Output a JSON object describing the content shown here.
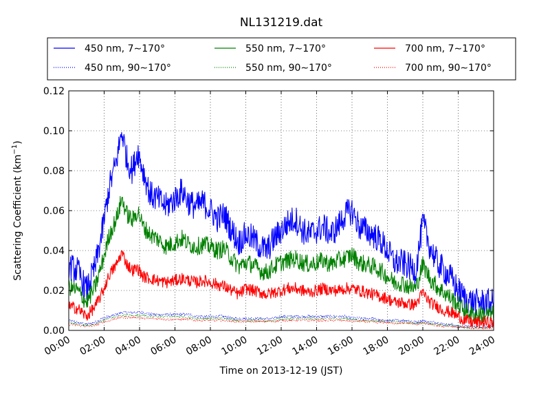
{
  "chart_data": {
    "type": "line",
    "title": "NL131219.dat",
    "xlabel": "Time on 2013-12-19 (JST)",
    "ylabel_main": "Scattering Coefficient (km",
    "ylabel_sup": "−1",
    "ylabel_end": ")",
    "xlim": [
      0,
      24
    ],
    "ylim": [
      0,
      0.12
    ],
    "x_ticks": [
      {
        "v": 0,
        "label": "00:00"
      },
      {
        "v": 2,
        "label": "02:00"
      },
      {
        "v": 4,
        "label": "04:00"
      },
      {
        "v": 6,
        "label": "06:00"
      },
      {
        "v": 8,
        "label": "08:00"
      },
      {
        "v": 10,
        "label": "10:00"
      },
      {
        "v": 12,
        "label": "12:00"
      },
      {
        "v": 14,
        "label": "14:00"
      },
      {
        "v": 16,
        "label": "16:00"
      },
      {
        "v": 18,
        "label": "18:00"
      },
      {
        "v": 20,
        "label": "20:00"
      },
      {
        "v": 22,
        "label": "22:00"
      },
      {
        "v": 24,
        "label": "24:00"
      }
    ],
    "y_ticks": [
      {
        "v": 0,
        "label": "0.00"
      },
      {
        "v": 0.02,
        "label": "0.02"
      },
      {
        "v": 0.04,
        "label": "0.04"
      },
      {
        "v": 0.06,
        "label": "0.06"
      },
      {
        "v": 0.08,
        "label": "0.08"
      },
      {
        "v": 0.1,
        "label": "0.10"
      },
      {
        "v": 0.12,
        "label": "0.12"
      }
    ],
    "grid": true,
    "legend_position": "top-outside",
    "x": [
      0,
      0.5,
      1.0,
      1.5,
      1.9,
      2.3,
      2.7,
      3.0,
      3.3,
      3.6,
      3.9,
      4.2,
      4.6,
      5.0,
      5.5,
      6.0,
      6.4,
      6.8,
      7.2,
      7.6,
      8.0,
      8.4,
      8.8,
      9.2,
      9.6,
      10.0,
      10.4,
      10.8,
      11.2,
      11.6,
      12.0,
      12.4,
      12.8,
      13.2,
      13.6,
      14.0,
      14.4,
      14.8,
      15.2,
      15.6,
      16.0,
      16.4,
      16.8,
      17.2,
      17.6,
      18.0,
      18.4,
      18.8,
      19.2,
      19.6,
      20.0,
      20.4,
      20.8,
      21.2,
      21.6,
      22.0,
      22.4,
      22.8,
      23.2,
      23.6,
      24.0
    ],
    "series": [
      {
        "name": "450 nm, 7∼170°",
        "color": "#0000ff",
        "style": "solid",
        "noise": 0.007,
        "values": [
          0.032,
          0.03,
          0.02,
          0.032,
          0.05,
          0.072,
          0.085,
          0.1,
          0.085,
          0.08,
          0.09,
          0.08,
          0.068,
          0.066,
          0.062,
          0.066,
          0.07,
          0.064,
          0.062,
          0.064,
          0.06,
          0.056,
          0.058,
          0.05,
          0.044,
          0.048,
          0.046,
          0.042,
          0.04,
          0.046,
          0.05,
          0.054,
          0.056,
          0.05,
          0.048,
          0.05,
          0.052,
          0.048,
          0.052,
          0.058,
          0.06,
          0.052,
          0.05,
          0.048,
          0.045,
          0.04,
          0.034,
          0.034,
          0.032,
          0.03,
          0.054,
          0.042,
          0.034,
          0.03,
          0.026,
          0.02,
          0.016,
          0.014,
          0.014,
          0.014,
          0.014
        ]
      },
      {
        "name": "550 nm, 7∼170°",
        "color": "#008000",
        "style": "solid",
        "noise": 0.0045,
        "values": [
          0.022,
          0.02,
          0.014,
          0.022,
          0.034,
          0.048,
          0.056,
          0.066,
          0.058,
          0.055,
          0.06,
          0.052,
          0.048,
          0.046,
          0.042,
          0.044,
          0.046,
          0.043,
          0.042,
          0.043,
          0.042,
          0.04,
          0.041,
          0.036,
          0.032,
          0.034,
          0.033,
          0.03,
          0.029,
          0.032,
          0.034,
          0.035,
          0.036,
          0.034,
          0.033,
          0.034,
          0.035,
          0.033,
          0.035,
          0.036,
          0.038,
          0.034,
          0.033,
          0.032,
          0.03,
          0.027,
          0.024,
          0.024,
          0.022,
          0.021,
          0.033,
          0.026,
          0.022,
          0.019,
          0.016,
          0.013,
          0.01,
          0.008,
          0.008,
          0.008,
          0.008
        ]
      },
      {
        "name": "700 nm, 7∼170°",
        "color": "#ff0000",
        "style": "solid",
        "noise": 0.003,
        "values": [
          0.012,
          0.011,
          0.007,
          0.012,
          0.019,
          0.028,
          0.033,
          0.039,
          0.033,
          0.03,
          0.031,
          0.027,
          0.026,
          0.025,
          0.024,
          0.025,
          0.026,
          0.025,
          0.024,
          0.025,
          0.024,
          0.023,
          0.022,
          0.02,
          0.018,
          0.021,
          0.02,
          0.019,
          0.018,
          0.019,
          0.02,
          0.021,
          0.021,
          0.02,
          0.019,
          0.02,
          0.021,
          0.02,
          0.02,
          0.021,
          0.021,
          0.02,
          0.019,
          0.018,
          0.017,
          0.016,
          0.014,
          0.014,
          0.013,
          0.013,
          0.019,
          0.014,
          0.012,
          0.01,
          0.009,
          0.007,
          0.005,
          0.004,
          0.004,
          0.004,
          0.004
        ]
      },
      {
        "name": "450 nm, 90∼170°",
        "color": "#0000ff",
        "style": "dotted",
        "noise": 0.0007,
        "values": [
          0.005,
          0.004,
          0.003,
          0.004,
          0.006,
          0.007,
          0.008,
          0.009,
          0.009,
          0.009,
          0.009,
          0.009,
          0.008,
          0.008,
          0.008,
          0.008,
          0.008,
          0.008,
          0.007,
          0.007,
          0.007,
          0.007,
          0.007,
          0.006,
          0.006,
          0.006,
          0.006,
          0.006,
          0.006,
          0.006,
          0.007,
          0.007,
          0.007,
          0.007,
          0.007,
          0.007,
          0.007,
          0.007,
          0.007,
          0.007,
          0.006,
          0.006,
          0.006,
          0.006,
          0.005,
          0.005,
          0.005,
          0.005,
          0.005,
          0.004,
          0.005,
          0.004,
          0.004,
          0.003,
          0.003,
          0.002,
          0.002,
          0.002,
          0.002,
          0.002,
          0.002
        ]
      },
      {
        "name": "550 nm, 90∼170°",
        "color": "#008000",
        "style": "dotted",
        "noise": 0.0006,
        "values": [
          0.004,
          0.003,
          0.0025,
          0.003,
          0.005,
          0.006,
          0.007,
          0.0075,
          0.0075,
          0.0075,
          0.0075,
          0.0075,
          0.007,
          0.007,
          0.007,
          0.007,
          0.007,
          0.0065,
          0.006,
          0.006,
          0.006,
          0.006,
          0.006,
          0.0055,
          0.005,
          0.005,
          0.005,
          0.005,
          0.005,
          0.005,
          0.006,
          0.006,
          0.006,
          0.006,
          0.006,
          0.006,
          0.006,
          0.006,
          0.006,
          0.006,
          0.0055,
          0.005,
          0.005,
          0.005,
          0.0045,
          0.0045,
          0.004,
          0.004,
          0.004,
          0.0035,
          0.004,
          0.0035,
          0.003,
          0.0025,
          0.0025,
          0.002,
          0.0015,
          0.0015,
          0.0015,
          0.0015,
          0.0015
        ]
      },
      {
        "name": "700 nm, 90∼170°",
        "color": "#ff0000",
        "style": "dotted",
        "noise": 0.0005,
        "values": [
          0.003,
          0.0025,
          0.002,
          0.0025,
          0.004,
          0.005,
          0.006,
          0.0065,
          0.0065,
          0.0065,
          0.0065,
          0.006,
          0.006,
          0.006,
          0.0055,
          0.0055,
          0.0055,
          0.0055,
          0.005,
          0.005,
          0.005,
          0.005,
          0.005,
          0.0045,
          0.0045,
          0.0045,
          0.0045,
          0.0045,
          0.0045,
          0.0045,
          0.005,
          0.005,
          0.005,
          0.005,
          0.005,
          0.005,
          0.005,
          0.005,
          0.005,
          0.005,
          0.0045,
          0.0045,
          0.0045,
          0.004,
          0.004,
          0.004,
          0.0035,
          0.0035,
          0.0035,
          0.003,
          0.0035,
          0.003,
          0.0025,
          0.002,
          0.002,
          0.0015,
          0.0015,
          0.0012,
          0.0012,
          0.0012,
          0.0012
        ]
      }
    ]
  }
}
